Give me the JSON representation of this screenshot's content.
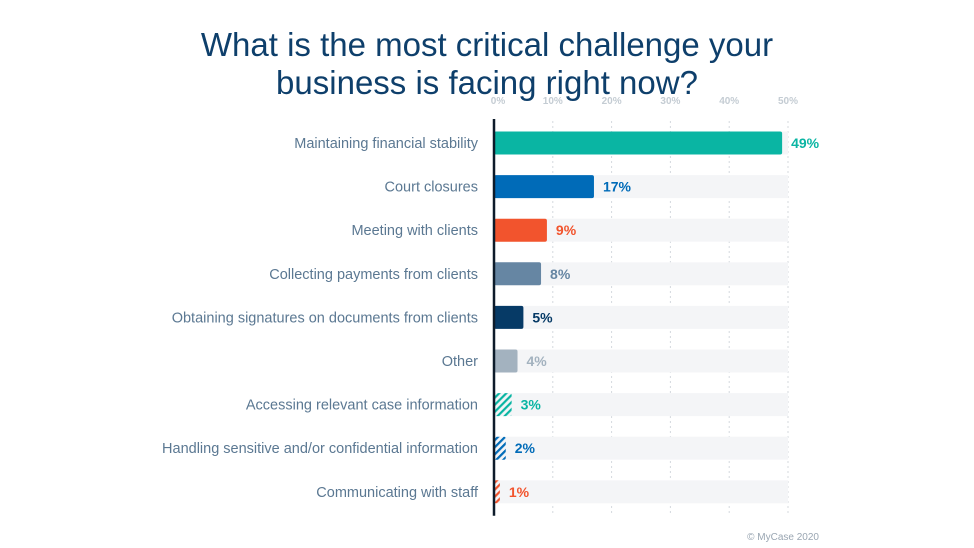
{
  "title_line1": "What is the most critical challenge your",
  "title_line2": "business is facing right now?",
  "credit": "© MyCase 2020",
  "chart_data": {
    "type": "bar",
    "orientation": "horizontal",
    "title": "What is the most critical challenge your business is facing right now?",
    "categories": [
      "Maintaining financial stability",
      "Court closures",
      "Meeting with clients",
      "Collecting payments from clients",
      "Obtaining signatures on documents from clients",
      "Other",
      "Accessing relevant case information",
      "Handling sensitive and/or confidential information",
      "Communicating with staff"
    ],
    "values": [
      49,
      17,
      9,
      8,
      5,
      4,
      3,
      2,
      1
    ],
    "value_labels": [
      "49%",
      "17%",
      "9%",
      "8%",
      "5%",
      "4%",
      "3%",
      "2%",
      "1%"
    ],
    "colors": [
      "#0ab5a3",
      "#006bb8",
      "#f2542d",
      "#6686a3",
      "#063a66",
      "#a3b2bf",
      "#0ab5a3",
      "#006bb8",
      "#f2542d"
    ],
    "hatched": [
      false,
      false,
      false,
      false,
      false,
      false,
      true,
      true,
      true
    ],
    "xticks": [
      "0%",
      "10%",
      "20%",
      "30%",
      "40%",
      "50%"
    ],
    "xlim": [
      0,
      50
    ],
    "axis_position": "top",
    "grid": true,
    "xlabel": "",
    "ylabel": ""
  }
}
